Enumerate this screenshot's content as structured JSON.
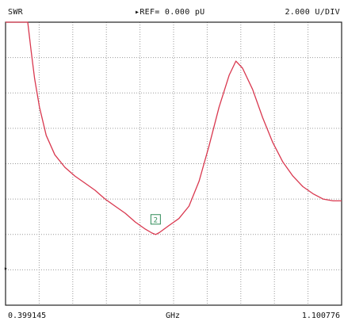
{
  "header": {
    "mode": "SWR",
    "ref": "▸REF= 0.000 pU",
    "scale": "2.000 U/DIV"
  },
  "footer": {
    "start": "0.399145",
    "unit": "GHz",
    "stop": "1.100776"
  },
  "marker_label": "2",
  "colors": {
    "trace": "#d9384f",
    "grid": "#9a9a9a",
    "marker": "#2e8b57",
    "frame": "#222222"
  },
  "chart_data": {
    "type": "line",
    "title": "",
    "xlabel": "GHz",
    "ylabel": "SWR",
    "xlim": [
      0.399145,
      1.100776
    ],
    "grid": true,
    "divisions": {
      "x": 10,
      "y": 8
    },
    "series": [
      {
        "values": [
          [
            0.399145,
            8.0
          ],
          [
            0.435,
            8.0
          ],
          [
            0.4455,
            8.0
          ],
          [
            0.4525,
            7.2
          ],
          [
            0.4598,
            6.4
          ],
          [
            0.47,
            5.6
          ],
          [
            0.484,
            4.8
          ],
          [
            0.502,
            4.25
          ],
          [
            0.523,
            3.9
          ],
          [
            0.544,
            3.65
          ],
          [
            0.565,
            3.45
          ],
          [
            0.586,
            3.25
          ],
          [
            0.607,
            3.0
          ],
          [
            0.628,
            2.8
          ],
          [
            0.649,
            2.6
          ],
          [
            0.67,
            2.35
          ],
          [
            0.691,
            2.15
          ],
          [
            0.705,
            2.04
          ],
          [
            0.7125,
            2.0
          ],
          [
            0.72,
            2.05
          ],
          [
            0.74,
            2.25
          ],
          [
            0.761,
            2.45
          ],
          [
            0.782,
            2.8
          ],
          [
            0.803,
            3.5
          ],
          [
            0.824,
            4.5
          ],
          [
            0.845,
            5.6
          ],
          [
            0.866,
            6.5
          ],
          [
            0.88,
            6.9
          ],
          [
            0.894,
            6.7
          ],
          [
            0.915,
            6.1
          ],
          [
            0.936,
            5.3
          ],
          [
            0.957,
            4.6
          ],
          [
            0.978,
            4.05
          ],
          [
            0.999,
            3.65
          ],
          [
            1.02,
            3.35
          ],
          [
            1.041,
            3.15
          ],
          [
            1.062,
            3.0
          ],
          [
            1.083,
            2.95
          ],
          [
            1.100776,
            2.95
          ]
        ]
      }
    ],
    "markers": [
      {
        "label": "2",
        "x": 0.7125,
        "y": 2.0
      }
    ]
  }
}
